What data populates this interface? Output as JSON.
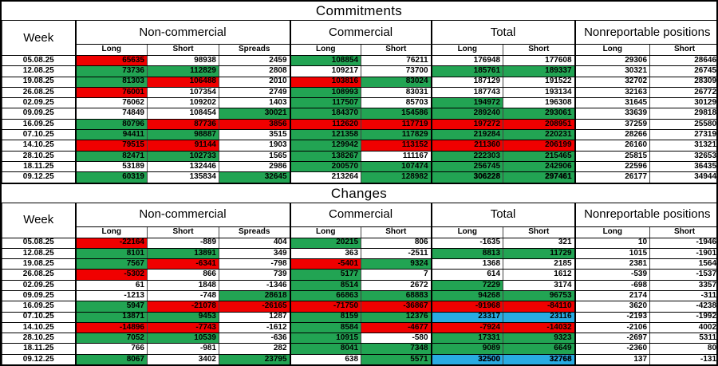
{
  "colors": {
    "w": "#FFFFFF",
    "g": "#22A453",
    "r": "#F00000",
    "b": "#29ABE2",
    "border": "#000000"
  },
  "chart_data": [
    {
      "type": "table",
      "title": "Commitments",
      "week_header": "Week",
      "groups": [
        {
          "label": "Non-commercial",
          "span": 3
        },
        {
          "label": "Commercial",
          "span": 2
        },
        {
          "label": "Total",
          "span": 2
        },
        {
          "label": "Nonreportable positions",
          "span": 2
        }
      ],
      "subheaders": [
        "Long",
        "Short",
        "Spreads",
        "Long",
        "Short",
        "Long",
        "Short",
        "Long",
        "Short"
      ],
      "rows": [
        {
          "week": "05.08.25",
          "cells": [
            [
              65635,
              "r"
            ],
            [
              98938,
              "w"
            ],
            [
              2459,
              "w"
            ],
            [
              108854,
              "g"
            ],
            [
              76211,
              "w"
            ],
            [
              176948,
              "w"
            ],
            [
              177608,
              "w"
            ],
            [
              29306,
              "w"
            ],
            [
              28646,
              "w"
            ]
          ]
        },
        {
          "week": "12.08.25",
          "cells": [
            [
              73736,
              "g"
            ],
            [
              112829,
              "g"
            ],
            [
              2808,
              "w"
            ],
            [
              109217,
              "w"
            ],
            [
              73700,
              "w"
            ],
            [
              185761,
              "g"
            ],
            [
              189337,
              "g"
            ],
            [
              30321,
              "w"
            ],
            [
              26745,
              "w"
            ]
          ]
        },
        {
          "week": "19.08.25",
          "cells": [
            [
              81303,
              "g"
            ],
            [
              106488,
              "r"
            ],
            [
              2010,
              "w"
            ],
            [
              103816,
              "r"
            ],
            [
              83024,
              "g"
            ],
            [
              187129,
              "w"
            ],
            [
              191522,
              "w"
            ],
            [
              32702,
              "w"
            ],
            [
              28309,
              "w"
            ]
          ]
        },
        {
          "week": "26.08.25",
          "cells": [
            [
              76001,
              "r"
            ],
            [
              107354,
              "w"
            ],
            [
              2749,
              "w"
            ],
            [
              108993,
              "g"
            ],
            [
              83031,
              "w"
            ],
            [
              187743,
              "w"
            ],
            [
              193134,
              "w"
            ],
            [
              32163,
              "w"
            ],
            [
              26772,
              "w"
            ]
          ]
        },
        {
          "week": "02.09.25",
          "cells": [
            [
              76062,
              "w"
            ],
            [
              109202,
              "w"
            ],
            [
              1403,
              "w"
            ],
            [
              117507,
              "g"
            ],
            [
              85703,
              "w"
            ],
            [
              194972,
              "g"
            ],
            [
              196308,
              "w"
            ],
            [
              31645,
              "w"
            ],
            [
              30129,
              "w"
            ]
          ]
        },
        {
          "week": "09.09.25",
          "cells": [
            [
              74849,
              "w"
            ],
            [
              108454,
              "w"
            ],
            [
              30021,
              "g"
            ],
            [
              184370,
              "g"
            ],
            [
              154586,
              "g"
            ],
            [
              289240,
              "g"
            ],
            [
              293061,
              "g"
            ],
            [
              33639,
              "w"
            ],
            [
              29818,
              "w"
            ]
          ]
        },
        {
          "week": "16.09.25",
          "cells": [
            [
              80796,
              "g"
            ],
            [
              87736,
              "r"
            ],
            [
              3856,
              "r"
            ],
            [
              112620,
              "r"
            ],
            [
              117719,
              "r"
            ],
            [
              197272,
              "r"
            ],
            [
              208951,
              "r"
            ],
            [
              37259,
              "w"
            ],
            [
              25580,
              "w"
            ]
          ]
        },
        {
          "week": "07.10.25",
          "cells": [
            [
              94411,
              "g"
            ],
            [
              98887,
              "g"
            ],
            [
              3515,
              "w"
            ],
            [
              121358,
              "g"
            ],
            [
              117829,
              "g"
            ],
            [
              219284,
              "g"
            ],
            [
              220231,
              "g"
            ],
            [
              28266,
              "w"
            ],
            [
              27319,
              "w"
            ]
          ]
        },
        {
          "week": "14.10.25",
          "cells": [
            [
              79515,
              "r"
            ],
            [
              91144,
              "r"
            ],
            [
              1903,
              "w"
            ],
            [
              129942,
              "g"
            ],
            [
              113152,
              "r"
            ],
            [
              211360,
              "r"
            ],
            [
              206199,
              "r"
            ],
            [
              26160,
              "w"
            ],
            [
              31321,
              "w"
            ]
          ]
        },
        {
          "week": "28.10.25",
          "cells": [
            [
              82471,
              "g"
            ],
            [
              102733,
              "g"
            ],
            [
              1565,
              "w"
            ],
            [
              138267,
              "g"
            ],
            [
              111167,
              "w"
            ],
            [
              222303,
              "g"
            ],
            [
              215465,
              "g"
            ],
            [
              25815,
              "w"
            ],
            [
              32653,
              "w"
            ]
          ]
        },
        {
          "week": "18.11.25",
          "cells": [
            [
              53189,
              "w"
            ],
            [
              132446,
              "w"
            ],
            [
              2986,
              "w"
            ],
            [
              200570,
              "g"
            ],
            [
              107474,
              "g"
            ],
            [
              256745,
              "g"
            ],
            [
              242906,
              "g"
            ],
            [
              22596,
              "w"
            ],
            [
              36435,
              "w"
            ]
          ]
        },
        {
          "week": "09.12.25",
          "cells": [
            [
              60319,
              "g"
            ],
            [
              135834,
              "w"
            ],
            [
              32645,
              "g"
            ],
            [
              213264,
              "w"
            ],
            [
              128982,
              "g"
            ],
            [
              306228,
              "g",
              1
            ],
            [
              297461,
              "g",
              1
            ],
            [
              26177,
              "w"
            ],
            [
              34944,
              "w"
            ]
          ]
        }
      ]
    },
    {
      "type": "table",
      "title": "Changes",
      "week_header": "Week",
      "groups": [
        {
          "label": "Non-commercial",
          "span": 3
        },
        {
          "label": "Commercial",
          "span": 2
        },
        {
          "label": "Total",
          "span": 2
        },
        {
          "label": "Nonreportable positions",
          "span": 2
        }
      ],
      "subheaders": [
        "Long",
        "Short",
        "Spreads",
        "Long",
        "Short",
        "Long",
        "Short",
        "Long",
        "Short"
      ],
      "rows": [
        {
          "week": "05.08.25",
          "cells": [
            [
              -22164,
              "r"
            ],
            [
              -889,
              "w"
            ],
            [
              404,
              "w"
            ],
            [
              20215,
              "g"
            ],
            [
              806,
              "w"
            ],
            [
              -1635,
              "w"
            ],
            [
              321,
              "w"
            ],
            [
              10,
              "w"
            ],
            [
              -1946,
              "w"
            ]
          ]
        },
        {
          "week": "12.08.25",
          "cells": [
            [
              8101,
              "g"
            ],
            [
              13891,
              "g"
            ],
            [
              349,
              "w"
            ],
            [
              363,
              "w"
            ],
            [
              -2511,
              "w"
            ],
            [
              8813,
              "g"
            ],
            [
              11729,
              "g"
            ],
            [
              1015,
              "w"
            ],
            [
              -1901,
              "w"
            ]
          ]
        },
        {
          "week": "19.08.25",
          "cells": [
            [
              7567,
              "g"
            ],
            [
              -6341,
              "r"
            ],
            [
              -798,
              "w"
            ],
            [
              -5401,
              "r"
            ],
            [
              9324,
              "g"
            ],
            [
              1368,
              "w"
            ],
            [
              2185,
              "w"
            ],
            [
              2381,
              "w"
            ],
            [
              1564,
              "w"
            ]
          ]
        },
        {
          "week": "26.08.25",
          "cells": [
            [
              -5302,
              "r"
            ],
            [
              866,
              "w"
            ],
            [
              739,
              "w"
            ],
            [
              5177,
              "g"
            ],
            [
              7,
              "w"
            ],
            [
              614,
              "w"
            ],
            [
              1612,
              "w"
            ],
            [
              -539,
              "w"
            ],
            [
              -1537,
              "w"
            ]
          ]
        },
        {
          "week": "02.09.25",
          "cells": [
            [
              61,
              "w"
            ],
            [
              1848,
              "w"
            ],
            [
              -1346,
              "w"
            ],
            [
              8514,
              "g"
            ],
            [
              2672,
              "w"
            ],
            [
              7229,
              "g"
            ],
            [
              3174,
              "w"
            ],
            [
              -698,
              "w"
            ],
            [
              3357,
              "w"
            ]
          ]
        },
        {
          "week": "09.09.25",
          "cells": [
            [
              -1213,
              "w"
            ],
            [
              -748,
              "w"
            ],
            [
              28618,
              "g"
            ],
            [
              66863,
              "g"
            ],
            [
              68883,
              "g"
            ],
            [
              94268,
              "g"
            ],
            [
              96753,
              "g"
            ],
            [
              2174,
              "w"
            ],
            [
              -311,
              "w"
            ]
          ]
        },
        {
          "week": "16.09.25",
          "cells": [
            [
              5947,
              "g"
            ],
            [
              -21078,
              "r"
            ],
            [
              -26165,
              "r"
            ],
            [
              -71750,
              "r"
            ],
            [
              -36867,
              "r"
            ],
            [
              -91968,
              "r"
            ],
            [
              -84110,
              "r"
            ],
            [
              3620,
              "w"
            ],
            [
              -4238,
              "w"
            ]
          ]
        },
        {
          "week": "07.10.25",
          "cells": [
            [
              13871,
              "g"
            ],
            [
              9453,
              "g"
            ],
            [
              1287,
              "w"
            ],
            [
              8159,
              "g"
            ],
            [
              12376,
              "g"
            ],
            [
              23317,
              "b"
            ],
            [
              23116,
              "b"
            ],
            [
              -2193,
              "w"
            ],
            [
              -1992,
              "w"
            ]
          ]
        },
        {
          "week": "14.10.25",
          "cells": [
            [
              -14896,
              "r"
            ],
            [
              -7743,
              "r"
            ],
            [
              -1612,
              "w"
            ],
            [
              8584,
              "g"
            ],
            [
              -4677,
              "r"
            ],
            [
              -7924,
              "r"
            ],
            [
              -14032,
              "r"
            ],
            [
              -2106,
              "w"
            ],
            [
              4002,
              "w"
            ]
          ]
        },
        {
          "week": "28.10.25",
          "cells": [
            [
              7052,
              "g"
            ],
            [
              10539,
              "g"
            ],
            [
              -636,
              "w"
            ],
            [
              10915,
              "g"
            ],
            [
              -580,
              "w"
            ],
            [
              17331,
              "g"
            ],
            [
              9323,
              "g"
            ],
            [
              -2697,
              "w"
            ],
            [
              5311,
              "w"
            ]
          ]
        },
        {
          "week": "18.11.25",
          "cells": [
            [
              766,
              "w"
            ],
            [
              -981,
              "w"
            ],
            [
              282,
              "w"
            ],
            [
              8041,
              "g"
            ],
            [
              7348,
              "g"
            ],
            [
              9089,
              "g"
            ],
            [
              6649,
              "g"
            ],
            [
              -2360,
              "w"
            ],
            [
              80,
              "w"
            ]
          ]
        },
        {
          "week": "09.12.25",
          "cells": [
            [
              8067,
              "g"
            ],
            [
              3402,
              "w"
            ],
            [
              23795,
              "g"
            ],
            [
              638,
              "w"
            ],
            [
              5571,
              "g"
            ],
            [
              32500,
              "b",
              1
            ],
            [
              32768,
              "b",
              1
            ],
            [
              137,
              "w"
            ],
            [
              -131,
              "w"
            ]
          ]
        }
      ]
    }
  ]
}
